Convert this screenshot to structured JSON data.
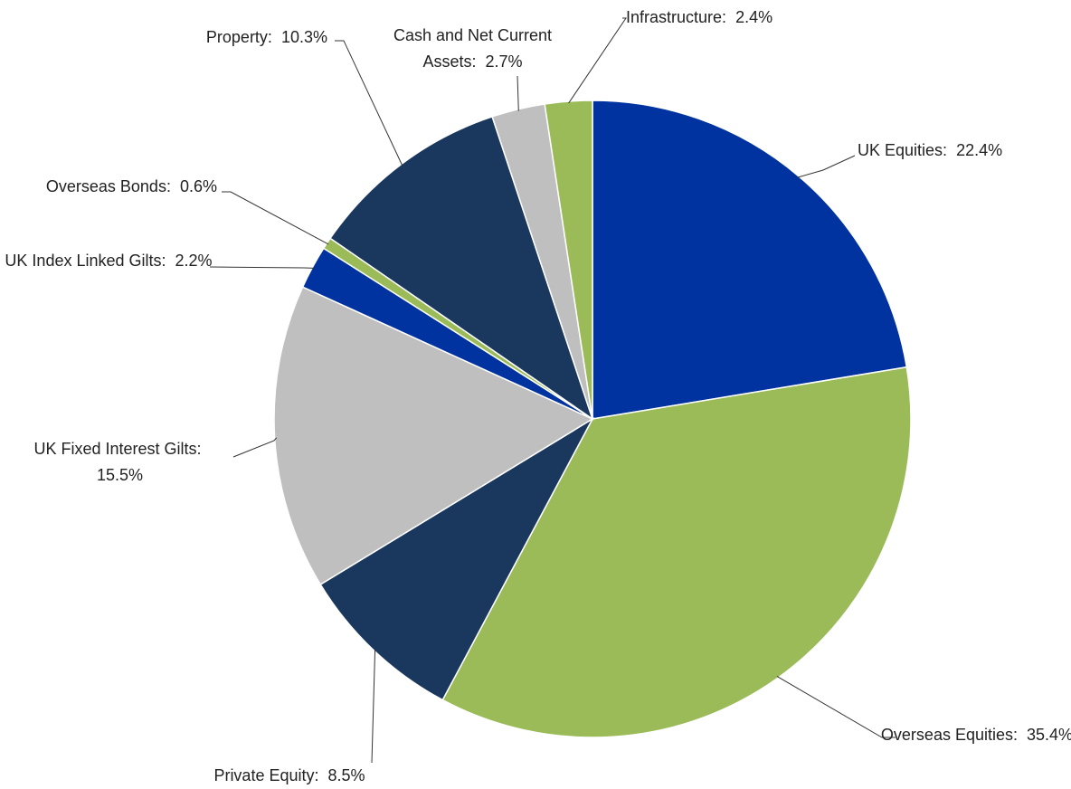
{
  "chart_data": {
    "type": "pie",
    "categories": [
      "UK Equities:",
      "Overseas Equities:",
      "Private Equity:",
      "UK Fixed Interest Gilts:",
      "UK Index Linked Gilts:",
      "Overseas Bonds:",
      "Property:",
      "Cash and Net Current Assets:",
      "Infrastructure:"
    ],
    "values": [
      22.4,
      35.4,
      8.5,
      15.5,
      2.2,
      0.6,
      10.3,
      2.7,
      2.4
    ],
    "value_labels": [
      "22.4%",
      "35.4%",
      "8.5%",
      "15.5%",
      "2.2%",
      "0.6%",
      "10.3%",
      "2.7%",
      "2.4%"
    ],
    "colors": [
      "#0033a0",
      "#9bbb59",
      "#1a375e",
      "#bfbfbf",
      "#0033a0",
      "#9bbb59",
      "#1a375e",
      "#bfbfbf",
      "#9bbb59"
    ]
  }
}
